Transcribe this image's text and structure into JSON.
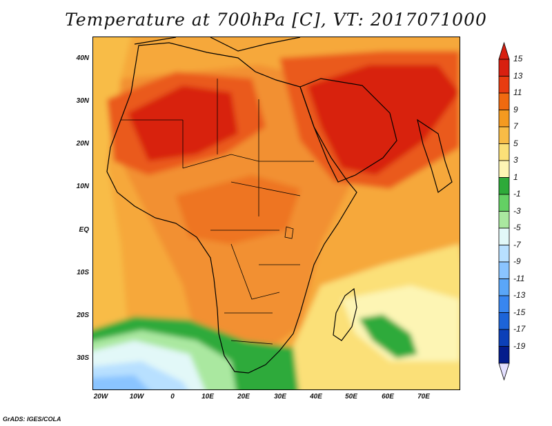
{
  "title": "Temperature at 700hPa [C], VT: 2017071000",
  "credit": "GrADS: IGES/COLA",
  "lat_labels": [
    "40N",
    "30N",
    "20N",
    "10N",
    "EQ",
    "10S",
    "20S",
    "30S"
  ],
  "lon_labels": [
    "20W",
    "10W",
    "0",
    "10E",
    "20E",
    "30E",
    "40E",
    "50E",
    "60E",
    "70E"
  ],
  "colorbar": {
    "labels": [
      "15",
      "13",
      "11",
      "9",
      "7",
      "5",
      "3",
      "1",
      "-1",
      "-3",
      "-5",
      "-7",
      "-9",
      "-11",
      "-13",
      "-15",
      "-17",
      "-19"
    ],
    "colors": [
      "#d82010",
      "#e83c10",
      "#f06a10",
      "#f49a20",
      "#f8bc46",
      "#fbe078",
      "#fdf5b4",
      "#2eaa3a",
      "#64d064",
      "#aae8a0",
      "#e2f8f8",
      "#b8e0ff",
      "#8ac4ff",
      "#5aa6f8",
      "#3886f0",
      "#1d64d8",
      "#0c40b8",
      "#041c8c"
    ]
  },
  "map": {
    "region": "Africa and Middle East",
    "lat_range": [
      -37,
      45
    ],
    "lon_range": [
      -23,
      80
    ],
    "variable": "700hPa temperature (C)"
  }
}
